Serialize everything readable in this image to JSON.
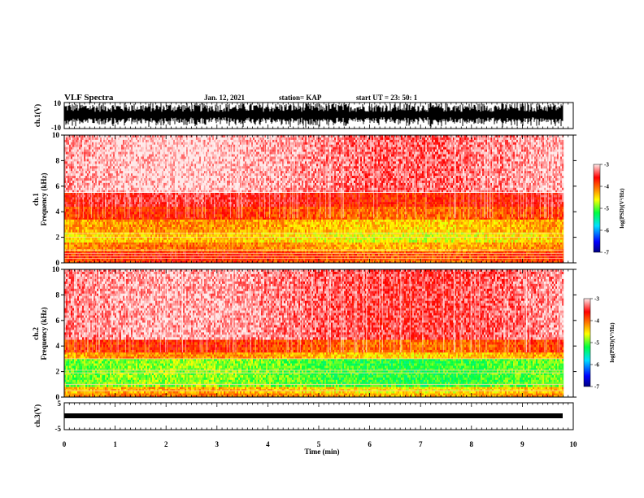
{
  "header": {
    "title": "VLF Spectra",
    "date": "Jan. 12, 2021",
    "station": "station= KAP",
    "start_ut": "start UT =  23: 50: 1"
  },
  "colors": {
    "background": "#ffffff",
    "axis": "#000000",
    "colormap": [
      "#000080",
      "#0000ff",
      "#00e0ff",
      "#00ff40",
      "#ffff00",
      "#ff8000",
      "#ff0000",
      "#ffe8e8"
    ]
  },
  "chart_data": [
    {
      "id": "ch1-waveform",
      "type": "line",
      "ylabel": "ch.1(V)",
      "ylim": [
        -10,
        10
      ],
      "yticks": [
        "10",
        "-10"
      ],
      "xlim": [
        0,
        10
      ],
      "trace_max_x": 9.8,
      "description_values": {
        "amplitude_range": [
          -9.5,
          9.5
        ]
      }
    },
    {
      "id": "ch1-spectrogram",
      "type": "heatmap",
      "ylabel": "Frequency (kHz)",
      "ylabel_prefix": "ch.1",
      "ylim": [
        0,
        10
      ],
      "yticks": [
        "0",
        "2",
        "4",
        "6",
        "8",
        "10"
      ],
      "xlim": [
        0,
        10
      ],
      "trace_max_x": 9.8,
      "bands": [
        {
          "f": [
            0,
            0.3
          ],
          "log_psd": -3.9
        },
        {
          "f": [
            0.3,
            0.9
          ],
          "log_psd": -3.8
        },
        {
          "f": [
            0.9,
            1.6
          ],
          "log_psd": -4.2
        },
        {
          "f": [
            1.6,
            2.4
          ],
          "log_psd": -4.5
        },
        {
          "f": [
            2.4,
            3.4
          ],
          "log_psd": -4.3
        },
        {
          "f": [
            3.4,
            4.4
          ],
          "log_psd": -3.9
        },
        {
          "f": [
            4.4,
            5.5
          ],
          "log_psd": -3.6
        },
        {
          "f": [
            5.5,
            10
          ],
          "log_psd": -3.2
        }
      ],
      "lines_khz": [
        0.35,
        0.55,
        0.75,
        1.0,
        2.0,
        2.3,
        5.5
      ],
      "colorbar": {
        "label": "log(PSD)(V²/Hz)",
        "range": [
          -7,
          -3
        ],
        "ticks": [
          "-3",
          "-4",
          "-5",
          "-6",
          "-7"
        ]
      }
    },
    {
      "id": "ch2-spectrogram",
      "type": "heatmap",
      "ylabel": "Frequency (kHz)",
      "ylabel_prefix": "ch.2",
      "ylim": [
        0,
        10
      ],
      "yticks": [
        "0",
        "2",
        "4",
        "6",
        "8",
        "10"
      ],
      "xlim": [
        0,
        10
      ],
      "trace_max_x": 9.8,
      "bands": [
        {
          "f": [
            0,
            0.3
          ],
          "log_psd": -4.2
        },
        {
          "f": [
            0.3,
            0.8
          ],
          "log_psd": -4.4
        },
        {
          "f": [
            0.8,
            3.0
          ],
          "log_psd": -5.0
        },
        {
          "f": [
            3.0,
            3.5
          ],
          "log_psd": -4.3
        },
        {
          "f": [
            3.5,
            4.5
          ],
          "log_psd": -3.9
        },
        {
          "f": [
            4.5,
            10
          ],
          "log_psd": -3.3
        }
      ],
      "lines_khz": [
        0.5,
        1.0,
        1.9,
        2.1,
        3.0
      ],
      "colorbar": {
        "label": "log(PSD)(V²/Hz)",
        "range": [
          -7,
          -3
        ],
        "ticks": [
          "-3",
          "-4",
          "-5",
          "-6",
          "-7"
        ]
      }
    },
    {
      "id": "ch3-waveform",
      "type": "line",
      "ylabel": "ch.3(V)",
      "ylim": [
        -5,
        5
      ],
      "yticks": [
        "5",
        "-5"
      ],
      "xlim": [
        0,
        10
      ],
      "trace_max_x": 9.8,
      "description_values": {
        "amplitude_range": [
          -0.6,
          0.6
        ]
      }
    }
  ],
  "xaxis": {
    "label": "Time (min)",
    "ticks": [
      "0",
      "1",
      "2",
      "3",
      "4",
      "5",
      "6",
      "7",
      "8",
      "9",
      "10"
    ]
  }
}
